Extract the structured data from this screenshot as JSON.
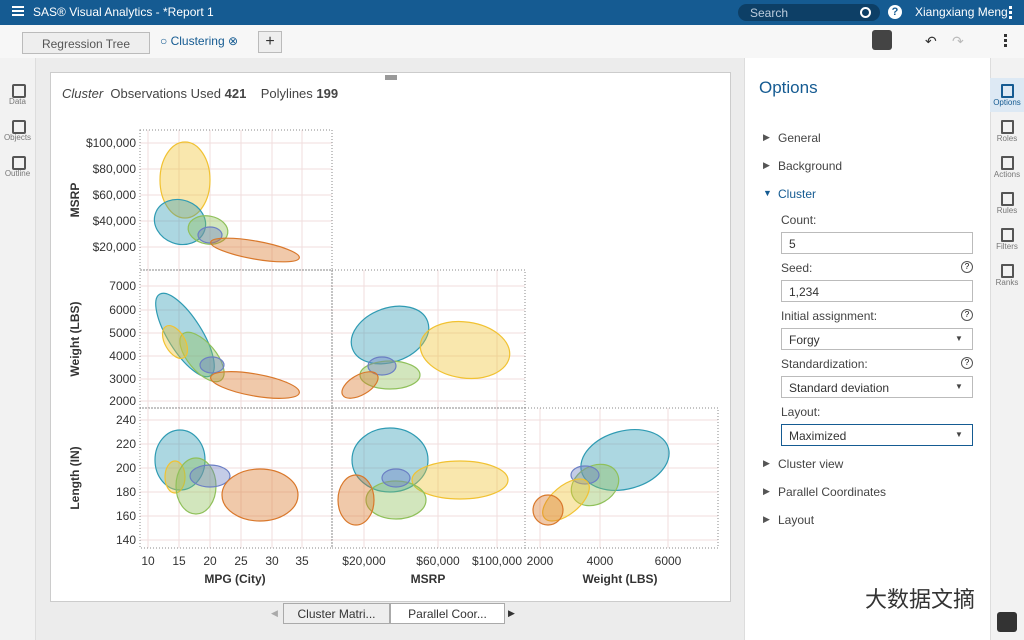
{
  "app_bar": {
    "title": "SAS® Visual Analytics - *Report 1",
    "search": "Search",
    "user": "Xiangxiang Meng"
  },
  "tabs": [
    "Regression Tree",
    "Clustering"
  ],
  "left_sidebar": [
    "Data",
    "Objects",
    "Outline"
  ],
  "report": {
    "object": "Cluster",
    "observations_label": "Observations Used",
    "observations": "421",
    "polylines_label": "Polylines",
    "polylines": "199",
    "rows": [
      {
        "label": "MSRP",
        "ticks": [
          "$100,000",
          "$80,000",
          "$60,000",
          "$40,000",
          "$20,000"
        ]
      },
      {
        "label": "Weight (LBS)",
        "ticks": [
          "7000",
          "6000",
          "5000",
          "4000",
          "3000",
          "2000"
        ]
      },
      {
        "label": "Length (IN)",
        "ticks": [
          "240",
          "220",
          "200",
          "180",
          "160",
          "140"
        ]
      }
    ],
    "columns": [
      {
        "label": "MPG (City)",
        "ticks": [
          "10",
          "15",
          "20",
          "25",
          "30",
          "35"
        ]
      },
      {
        "label": "MSRP",
        "ticks": [
          "$20,000",
          "$60,000",
          "$100,000"
        ]
      },
      {
        "label": "Weight (LBS)",
        "ticks": [
          "2000",
          "4000",
          "6000"
        ]
      }
    ],
    "bottom_tabs": [
      "Cluster Matri...",
      "Parallel Coor..."
    ]
  },
  "options": {
    "title": "Options",
    "sections_before": [
      "General",
      "Background"
    ],
    "cluster": "Cluster",
    "count_label": "Count:",
    "count": "5",
    "seed_label": "Seed:",
    "seed": "1,234",
    "initial_label": "Initial assignment:",
    "initial": "Forgy",
    "standardization_label": "Standardization:",
    "standardization": "Standard deviation",
    "layout_label": "Layout:",
    "layout": "Maximized",
    "sections_after": [
      "Cluster view",
      "Parallel Coordinates",
      "Layout"
    ]
  },
  "right_sidebar": [
    "Options",
    "Roles",
    "Actions",
    "Rules",
    "Filters",
    "Ranks"
  ],
  "watermark": "大数据文摘"
}
